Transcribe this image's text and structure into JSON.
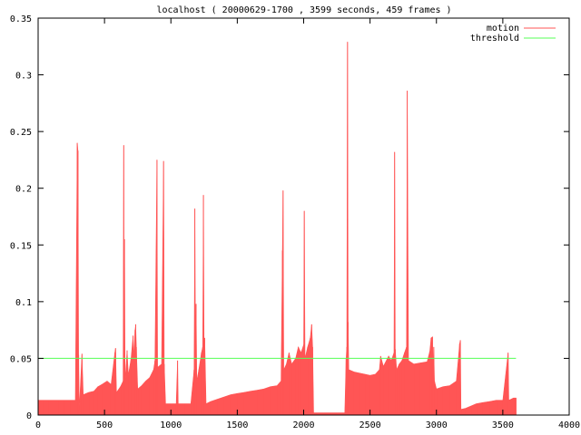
{
  "chart_data": {
    "type": "area",
    "title": "localhost ( 20000629-1700 , 3599 seconds, 459 frames )",
    "xlabel": "",
    "ylabel": "",
    "xlim": [
      0,
      4000
    ],
    "ylim": [
      0,
      0.35
    ],
    "x_ticks": [
      0,
      500,
      1000,
      1500,
      2000,
      2500,
      3000,
      3500,
      4000
    ],
    "y_ticks": [
      0,
      0.05,
      0.1,
      0.15,
      0.2,
      0.25,
      0.3,
      0.35
    ],
    "x_tick_labels": [
      "0",
      "500",
      "1000",
      "1500",
      "2000",
      "2500",
      "3000",
      "3500",
      "4000"
    ],
    "y_tick_labels": [
      "0",
      "0.05",
      "0.1",
      "0.15",
      "0.2",
      "0.25",
      "0.3",
      "0.35"
    ],
    "grid": false,
    "legend_position": "top-right",
    "series": [
      {
        "name": "motion",
        "color": "#ff5555",
        "style": "filled-impulses",
        "points": [
          [
            0,
            0.013
          ],
          [
            40,
            0.013
          ],
          [
            80,
            0.013
          ],
          [
            120,
            0.013
          ],
          [
            160,
            0.013
          ],
          [
            200,
            0.013
          ],
          [
            240,
            0.013
          ],
          [
            280,
            0.013
          ],
          [
            295,
            0.24
          ],
          [
            300,
            0.233
          ],
          [
            305,
            0.053
          ],
          [
            310,
            0.005
          ],
          [
            330,
            0.054
          ],
          [
            340,
            0.018
          ],
          [
            380,
            0.02
          ],
          [
            420,
            0.021
          ],
          [
            450,
            0.025
          ],
          [
            480,
            0.027
          ],
          [
            520,
            0.03
          ],
          [
            550,
            0.027
          ],
          [
            578,
            0.055
          ],
          [
            583,
            0.059
          ],
          [
            590,
            0.02
          ],
          [
            620,
            0.025
          ],
          [
            640,
            0.03
          ],
          [
            645,
            0.238
          ],
          [
            648,
            0.05
          ],
          [
            650,
            0.155
          ],
          [
            655,
            0.03
          ],
          [
            670,
            0.057
          ],
          [
            680,
            0.035
          ],
          [
            700,
            0.05
          ],
          [
            715,
            0.07
          ],
          [
            720,
            0.05
          ],
          [
            730,
            0.075
          ],
          [
            735,
            0.08
          ],
          [
            740,
            0.06
          ],
          [
            750,
            0.023
          ],
          [
            780,
            0.026
          ],
          [
            810,
            0.03
          ],
          [
            840,
            0.033
          ],
          [
            870,
            0.04
          ],
          [
            880,
            0.048
          ],
          [
            895,
            0.225
          ],
          [
            900,
            0.042
          ],
          [
            930,
            0.045
          ],
          [
            945,
            0.224
          ],
          [
            950,
            0.045
          ],
          [
            960,
            0.01
          ],
          [
            1000,
            0.01
          ],
          [
            1040,
            0.01
          ],
          [
            1050,
            0.048
          ],
          [
            1055,
            0.01
          ],
          [
            1100,
            0.01
          ],
          [
            1150,
            0.01
          ],
          [
            1175,
            0.04
          ],
          [
            1180,
            0.182
          ],
          [
            1185,
            0.067
          ],
          [
            1190,
            0.098
          ],
          [
            1195,
            0.03
          ],
          [
            1210,
            0.04
          ],
          [
            1230,
            0.055
          ],
          [
            1240,
            0.06
          ],
          [
            1245,
            0.194
          ],
          [
            1250,
            0.065
          ],
          [
            1255,
            0.068
          ],
          [
            1265,
            0.01
          ],
          [
            1300,
            0.012
          ],
          [
            1350,
            0.014
          ],
          [
            1400,
            0.016
          ],
          [
            1450,
            0.018
          ],
          [
            1500,
            0.019
          ],
          [
            1550,
            0.02
          ],
          [
            1600,
            0.021
          ],
          [
            1650,
            0.022
          ],
          [
            1700,
            0.023
          ],
          [
            1750,
            0.025
          ],
          [
            1800,
            0.026
          ],
          [
            1830,
            0.03
          ],
          [
            1840,
            0.145
          ],
          [
            1845,
            0.198
          ],
          [
            1850,
            0.04
          ],
          [
            1870,
            0.045
          ],
          [
            1890,
            0.055
          ],
          [
            1910,
            0.045
          ],
          [
            1940,
            0.05
          ],
          [
            1960,
            0.06
          ],
          [
            1980,
            0.055
          ],
          [
            2000,
            0.062
          ],
          [
            2005,
            0.18
          ],
          [
            2010,
            0.05
          ],
          [
            2030,
            0.06
          ],
          [
            2050,
            0.068
          ],
          [
            2060,
            0.08
          ],
          [
            2068,
            0.06
          ],
          [
            2075,
            0.002
          ],
          [
            2100,
            0.002
          ],
          [
            2150,
            0.002
          ],
          [
            2200,
            0.002
          ],
          [
            2250,
            0.002
          ],
          [
            2300,
            0.002
          ],
          [
            2310,
            0.002
          ],
          [
            2320,
            0.05
          ],
          [
            2325,
            0.06
          ],
          [
            2330,
            0.329
          ],
          [
            2335,
            0.082
          ],
          [
            2340,
            0.04
          ],
          [
            2380,
            0.038
          ],
          [
            2420,
            0.037
          ],
          [
            2460,
            0.036
          ],
          [
            2500,
            0.035
          ],
          [
            2540,
            0.036
          ],
          [
            2570,
            0.04
          ],
          [
            2580,
            0.052
          ],
          [
            2600,
            0.043
          ],
          [
            2640,
            0.052
          ],
          [
            2660,
            0.048
          ],
          [
            2680,
            0.055
          ],
          [
            2685,
            0.232
          ],
          [
            2690,
            0.058
          ],
          [
            2700,
            0.04
          ],
          [
            2720,
            0.045
          ],
          [
            2740,
            0.048
          ],
          [
            2760,
            0.055
          ],
          [
            2775,
            0.06
          ],
          [
            2780,
            0.286
          ],
          [
            2790,
            0.048
          ],
          [
            2830,
            0.045
          ],
          [
            2880,
            0.046
          ],
          [
            2930,
            0.047
          ],
          [
            2950,
            0.056
          ],
          [
            2960,
            0.068
          ],
          [
            2970,
            0.069
          ],
          [
            2975,
            0.04
          ],
          [
            2980,
            0.06
          ],
          [
            2985,
            0.03
          ],
          [
            3000,
            0.023
          ],
          [
            3050,
            0.025
          ],
          [
            3100,
            0.026
          ],
          [
            3150,
            0.03
          ],
          [
            3175,
            0.063
          ],
          [
            3180,
            0.066
          ],
          [
            3185,
            0.005
          ],
          [
            3220,
            0.006
          ],
          [
            3260,
            0.008
          ],
          [
            3300,
            0.01
          ],
          [
            3350,
            0.011
          ],
          [
            3400,
            0.012
          ],
          [
            3450,
            0.013
          ],
          [
            3500,
            0.013
          ],
          [
            3540,
            0.055
          ],
          [
            3545,
            0.013
          ],
          [
            3580,
            0.015
          ],
          [
            3599,
            0.015
          ]
        ]
      },
      {
        "name": "threshold",
        "color": "#55ff55",
        "style": "line",
        "points": [
          [
            0,
            0.05
          ],
          [
            3599,
            0.05
          ]
        ]
      }
    ]
  }
}
